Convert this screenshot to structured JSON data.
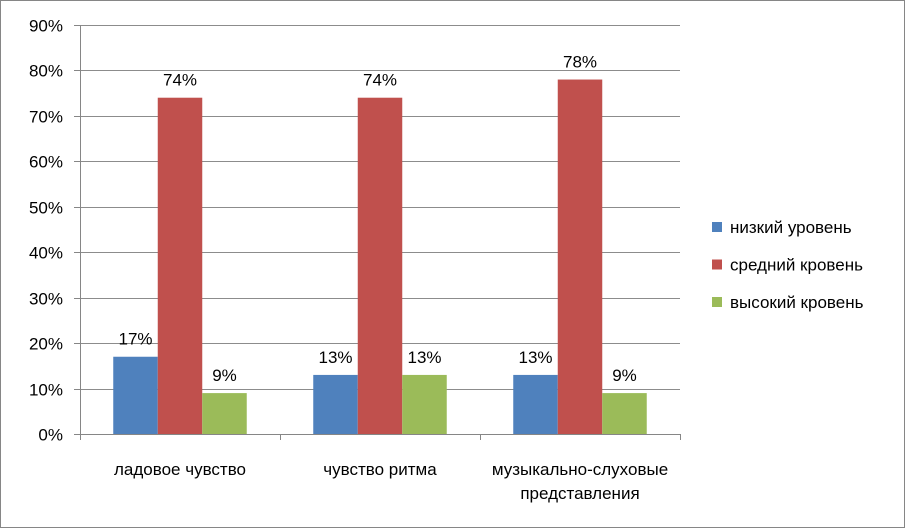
{
  "chart_data": {
    "type": "bar",
    "categories": [
      "ладовое чувство",
      "чувство ритма",
      "музыкально-слуховые представления"
    ],
    "series": [
      {
        "name": "низкий уровень",
        "color": "#4F81BD",
        "values": [
          17,
          13,
          13
        ],
        "labels": [
          "17%",
          "13%",
          "13%"
        ]
      },
      {
        "name": "средний кровень",
        "color": "#C0504D",
        "values": [
          74,
          74,
          78
        ],
        "labels": [
          "74%",
          "74%",
          "78%"
        ]
      },
      {
        "name": "высокий кровень",
        "color": "#9BBB59",
        "values": [
          9,
          13,
          9
        ],
        "labels": [
          "9%",
          "13%",
          "9%"
        ]
      }
    ],
    "ylim": [
      0,
      90
    ],
    "y_tick_labels": [
      "0%",
      "10%",
      "20%",
      "30%",
      "40%",
      "50%",
      "60%",
      "70%",
      "80%",
      "90%"
    ],
    "grid": true,
    "legend_position": "right"
  }
}
